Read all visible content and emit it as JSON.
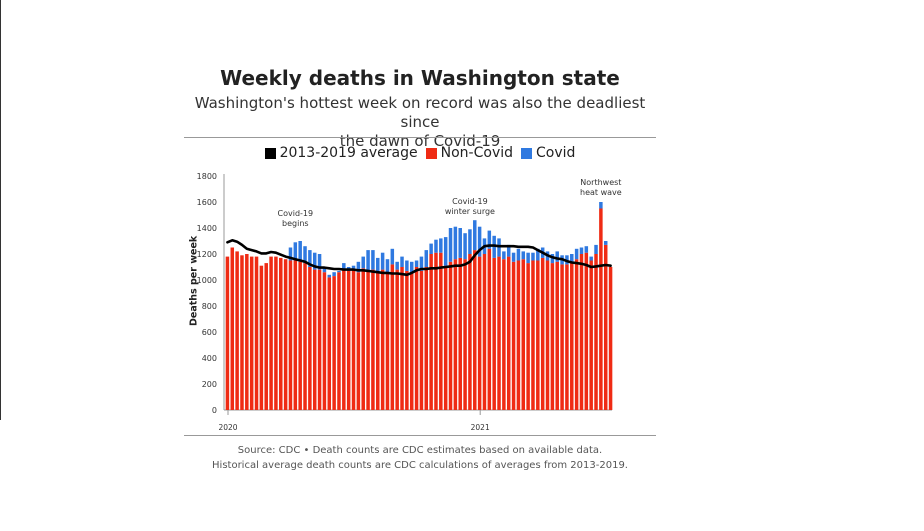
{
  "header": {
    "title": "Weekly deaths in Washington state",
    "subtitle_line1": "Washington's hottest week on record was also the deadliest since",
    "subtitle_line2": "the dawn of Covid-19"
  },
  "legend": [
    {
      "label": "2013-2019 average",
      "color": "#000000"
    },
    {
      "label": "Non-Covid",
      "color": "#ef2b14"
    },
    {
      "label": "Covid",
      "color": "#2f79e0"
    }
  ],
  "footer": {
    "source_line1": "Source: CDC • Death counts are CDC estimates based on available data.",
    "source_line2": "Historical average death counts are CDC calculations of averages from 2013-2019."
  },
  "chart_data": {
    "type": "bar",
    "stacked": true,
    "ylabel": "Deaths per week",
    "ylim": [
      0,
      1800
    ],
    "yticks": [
      0,
      200,
      400,
      600,
      800,
      1000,
      1200,
      1400,
      1600,
      1800
    ],
    "xtick_labels": [
      {
        "label": "2020",
        "week_index": 0
      },
      {
        "label": "2021",
        "week_index": 52
      }
    ],
    "grid": false,
    "legend_position": "top",
    "annotations": [
      {
        "lines": [
          "Covid-19",
          "begins"
        ],
        "week_index": 14
      },
      {
        "lines": [
          "Covid-19",
          "winter surge"
        ],
        "week_index": 50
      },
      {
        "lines": [
          "Northwest",
          "heat wave"
        ],
        "week_index": 77
      }
    ],
    "series": [
      {
        "name": "Non-Covid",
        "color": "#ef2b14",
        "values": [
          1180,
          1250,
          1220,
          1190,
          1200,
          1180,
          1180,
          1110,
          1130,
          1180,
          1180,
          1170,
          1160,
          1150,
          1150,
          1140,
          1130,
          1100,
          1080,
          1080,
          1060,
          1020,
          1030,
          1060,
          1080,
          1070,
          1080,
          1060,
          1090,
          1070,
          1080,
          1060,
          1080,
          1050,
          1120,
          1080,
          1100,
          1070,
          1060,
          1100,
          1070,
          1100,
          1200,
          1210,
          1210,
          1110,
          1140,
          1160,
          1170,
          1160,
          1200,
          1230,
          1180,
          1200,
          1240,
          1170,
          1180,
          1160,
          1180,
          1140,
          1150,
          1160,
          1130,
          1150,
          1150,
          1170,
          1150,
          1130,
          1140,
          1120,
          1120,
          1130,
          1160,
          1200,
          1210,
          1150,
          1200,
          1550,
          1270,
          1100
        ],
        "covid": [
          0,
          0,
          0,
          0,
          0,
          0,
          0,
          0,
          0,
          0,
          0,
          0,
          0,
          100,
          140,
          160,
          130,
          130,
          130,
          120,
          30,
          20,
          30,
          10,
          50,
          30,
          30,
          80,
          90,
          160,
          150,
          110,
          130,
          110,
          120,
          60,
          80,
          80,
          80,
          50,
          110,
          130,
          80,
          100,
          110,
          220,
          260,
          250,
          230,
          200,
          190,
          230,
          230,
          120,
          140,
          170,
          140,
          60,
          90,
          70,
          90,
          60,
          80,
          60,
          90,
          80,
          70,
          70,
          80,
          70,
          70,
          70,
          80,
          50,
          50,
          30,
          70,
          50,
          30,
          0
        ]
      }
    ],
    "average": {
      "name": "2013-2019 average",
      "color": "#000000",
      "values": [
        1290,
        1305,
        1295,
        1270,
        1240,
        1230,
        1220,
        1205,
        1205,
        1215,
        1210,
        1195,
        1180,
        1170,
        1160,
        1150,
        1140,
        1120,
        1105,
        1095,
        1095,
        1090,
        1085,
        1085,
        1080,
        1080,
        1080,
        1075,
        1075,
        1070,
        1065,
        1060,
        1055,
        1055,
        1050,
        1050,
        1045,
        1040,
        1055,
        1075,
        1085,
        1085,
        1090,
        1090,
        1095,
        1100,
        1105,
        1110,
        1110,
        1120,
        1140,
        1190,
        1230,
        1260,
        1265,
        1265,
        1260,
        1260,
        1260,
        1260,
        1255,
        1255,
        1255,
        1250,
        1230,
        1210,
        1190,
        1175,
        1165,
        1160,
        1145,
        1135,
        1130,
        1125,
        1115,
        1100,
        1105,
        1110,
        1115,
        1110
      ]
    }
  }
}
